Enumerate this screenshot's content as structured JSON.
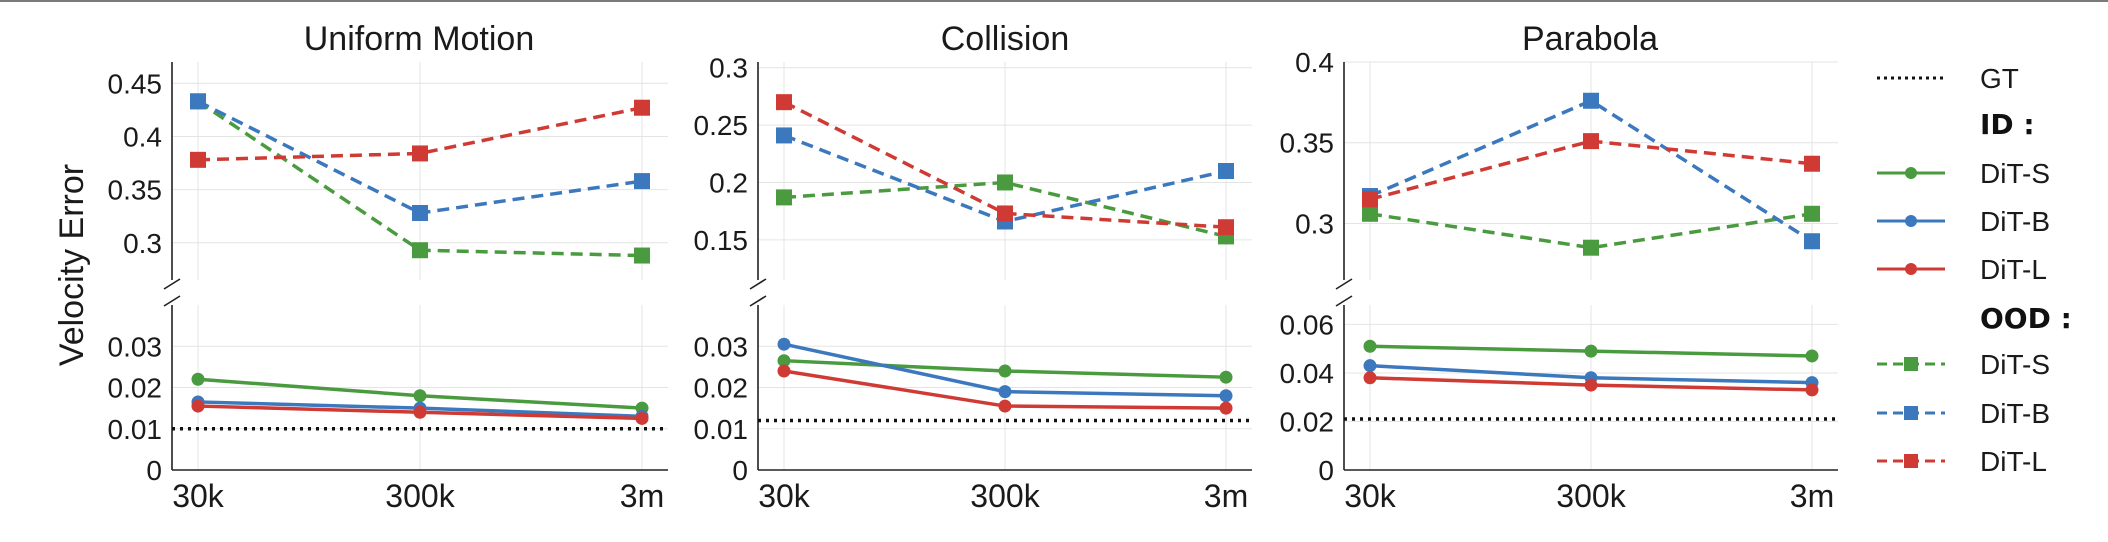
{
  "chart_data": {
    "type": "line",
    "ylabel": "Velocity Error",
    "x": [
      "30k",
      "300k",
      "3m"
    ],
    "legend": {
      "gt_label": "GT",
      "id_heading": "ID :",
      "ood_heading": "OOD :",
      "entries": [
        "DiT-S",
        "DiT-B",
        "DiT-L"
      ]
    },
    "colors": {
      "DiT-S": "#4a9a3f",
      "DiT-B": "#3b78bd",
      "DiT-L": "#cf3b34",
      "GT": "#111111"
    },
    "panels": [
      {
        "title": "Uniform Motion",
        "upper": {
          "ylim": [
            0.265,
            0.47
          ],
          "ticks": [
            0.3,
            0.35,
            0.4,
            0.45
          ],
          "tick_labels": [
            "0.3",
            "0.35",
            "0.4",
            "0.45"
          ]
        },
        "lower": {
          "ylim": [
            0,
            0.04
          ],
          "ticks": [
            0,
            0.01,
            0.02,
            0.03
          ],
          "tick_labels": [
            "0",
            "0.01",
            "0.02",
            "0.03"
          ]
        },
        "gt": 0.01,
        "series": [
          {
            "name": "DiT-S",
            "group": "ID",
            "values": [
              0.022,
              0.018,
              0.015
            ]
          },
          {
            "name": "DiT-B",
            "group": "ID",
            "values": [
              0.0165,
              0.015,
              0.013
            ]
          },
          {
            "name": "DiT-L",
            "group": "ID",
            "values": [
              0.0155,
              0.014,
              0.0125
            ]
          },
          {
            "name": "DiT-S",
            "group": "OOD",
            "values": [
              0.433,
              0.293,
              0.288
            ]
          },
          {
            "name": "DiT-B",
            "group": "OOD",
            "values": [
              0.433,
              0.328,
              0.358
            ]
          },
          {
            "name": "DiT-L",
            "group": "OOD",
            "values": [
              0.378,
              0.384,
              0.427
            ]
          }
        ]
      },
      {
        "title": "Collision",
        "upper": {
          "ylim": [
            0.115,
            0.305
          ],
          "ticks": [
            0.15,
            0.2,
            0.25,
            0.3
          ],
          "tick_labels": [
            "0.15",
            "0.2",
            "0.25",
            "0.3"
          ]
        },
        "lower": {
          "ylim": [
            0,
            0.04
          ],
          "ticks": [
            0,
            0.01,
            0.02,
            0.03
          ],
          "tick_labels": [
            "0",
            "0.01",
            "0.02",
            "0.03"
          ]
        },
        "gt": 0.012,
        "series": [
          {
            "name": "DiT-S",
            "group": "ID",
            "values": [
              0.0265,
              0.024,
              0.0225
            ]
          },
          {
            "name": "DiT-B",
            "group": "ID",
            "values": [
              0.0305,
              0.019,
              0.018
            ]
          },
          {
            "name": "DiT-L",
            "group": "ID",
            "values": [
              0.024,
              0.0155,
              0.015
            ]
          },
          {
            "name": "DiT-S",
            "group": "OOD",
            "values": [
              0.187,
              0.2,
              0.153
            ]
          },
          {
            "name": "DiT-B",
            "group": "OOD",
            "values": [
              0.241,
              0.166,
              0.21
            ]
          },
          {
            "name": "DiT-L",
            "group": "OOD",
            "values": [
              0.27,
              0.173,
              0.161
            ]
          }
        ]
      },
      {
        "title": "Parabola",
        "upper": {
          "ylim": [
            0.265,
            0.4
          ],
          "ticks": [
            0.3,
            0.35,
            0.4
          ],
          "tick_labels": [
            "0.3",
            "0.35",
            "0.4"
          ]
        },
        "lower": {
          "ylim": [
            0,
            0.068
          ],
          "ticks": [
            0,
            0.02,
            0.04,
            0.06
          ],
          "tick_labels": [
            "0",
            "0.02",
            "0.04",
            "0.06"
          ]
        },
        "gt": 0.021,
        "series": [
          {
            "name": "DiT-S",
            "group": "ID",
            "values": [
              0.051,
              0.049,
              0.047
            ]
          },
          {
            "name": "DiT-B",
            "group": "ID",
            "values": [
              0.043,
              0.038,
              0.036
            ]
          },
          {
            "name": "DiT-L",
            "group": "ID",
            "values": [
              0.038,
              0.035,
              0.033
            ]
          },
          {
            "name": "DiT-S",
            "group": "OOD",
            "values": [
              0.306,
              0.285,
              0.306
            ]
          },
          {
            "name": "DiT-B",
            "group": "OOD",
            "values": [
              0.317,
              0.376,
              0.289
            ]
          },
          {
            "name": "DiT-L",
            "group": "OOD",
            "values": [
              0.315,
              0.351,
              0.337
            ]
          }
        ]
      }
    ]
  }
}
